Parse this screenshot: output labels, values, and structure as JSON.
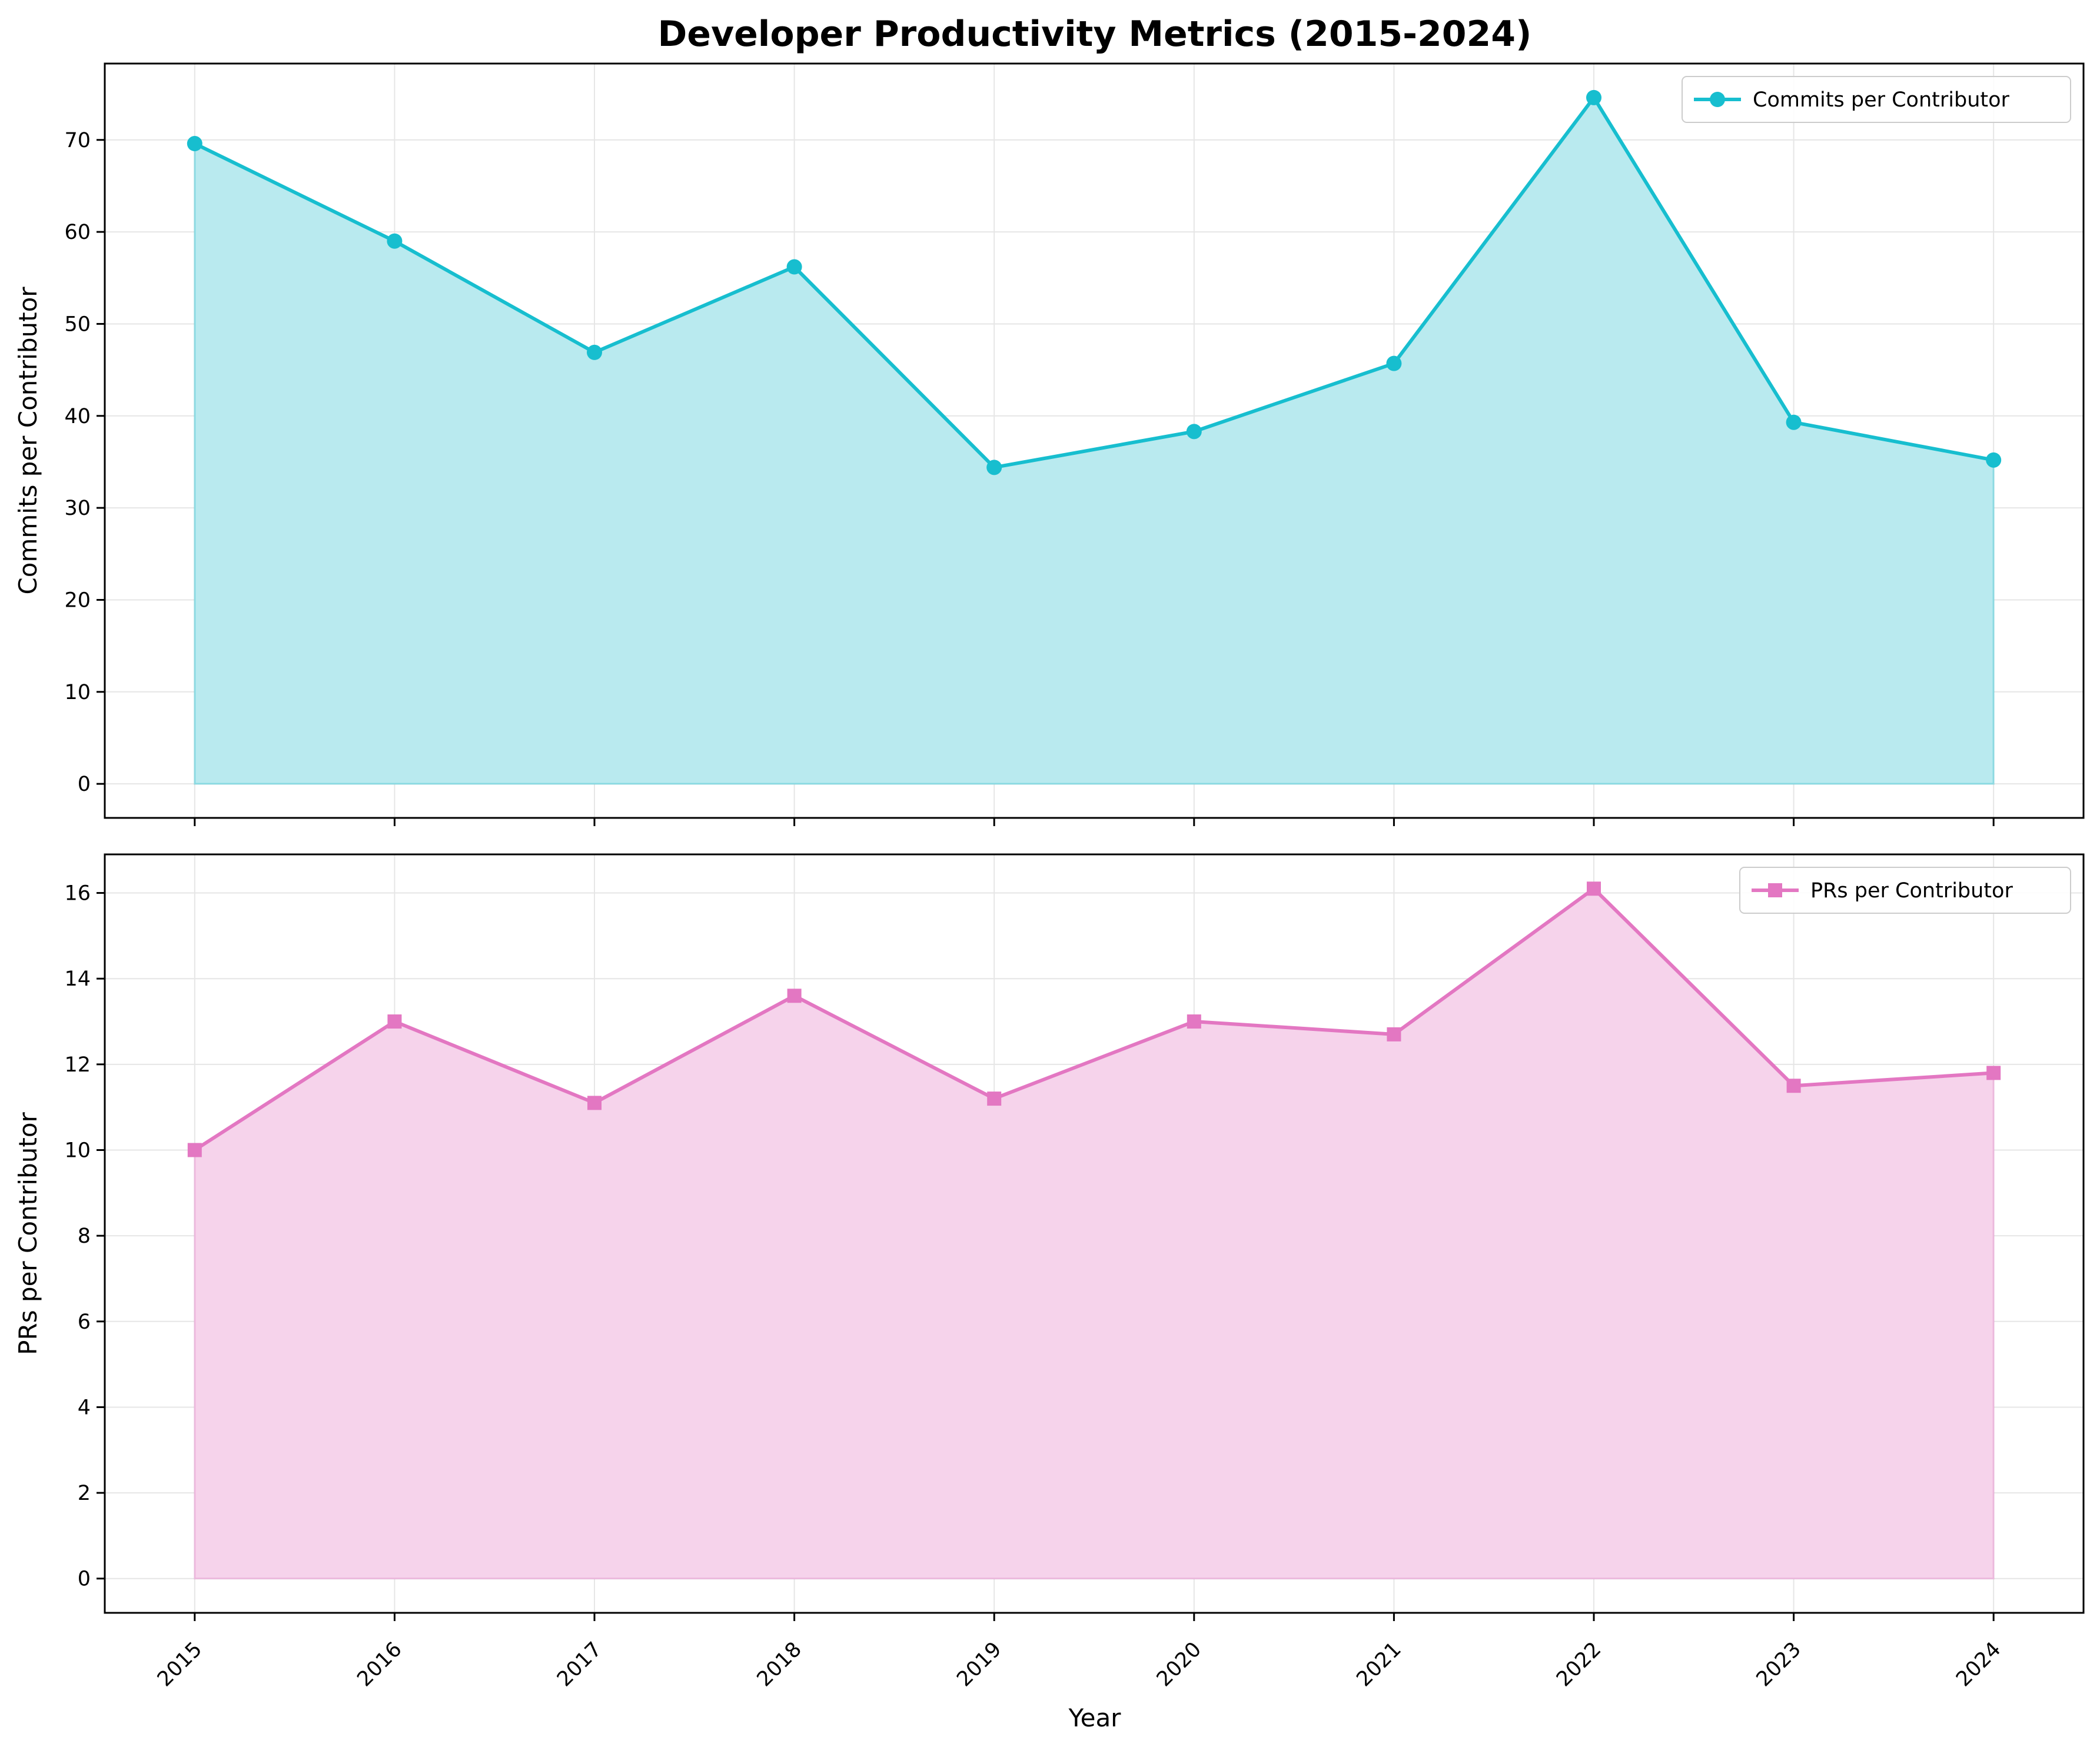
{
  "chart_data": {
    "title": "Developer Productivity Metrics (2015-2024)",
    "xlabel": "Year",
    "x": [
      2015,
      2016,
      2017,
      2018,
      2019,
      2020,
      2021,
      2022,
      2023,
      2024
    ],
    "grid": true,
    "panels": [
      {
        "type": "area",
        "ylabel": "Commits per Contributor",
        "ylim": [
          -3.7,
          78.3
        ],
        "yticks": [
          0,
          10,
          20,
          30,
          40,
          50,
          60,
          70
        ],
        "legend_position": "top-right",
        "series": [
          {
            "name": "Commits per Contributor",
            "marker": "circle",
            "color": "#17becf",
            "fill_color": "#b9eaef",
            "values": [
              69.6,
              59.0,
              46.9,
              56.2,
              34.4,
              38.3,
              45.7,
              74.6,
              39.3,
              35.2
            ]
          }
        ]
      },
      {
        "type": "area",
        "ylabel": "PRs per Contributor",
        "ylim": [
          -0.8,
          16.9
        ],
        "yticks": [
          0,
          2,
          4,
          6,
          8,
          10,
          12,
          14,
          16
        ],
        "legend_position": "top-right",
        "series": [
          {
            "name": "PRs per Contributor",
            "marker": "square",
            "color": "#e377c2",
            "fill_color": "#f6d3eb",
            "values": [
              10.0,
              13.0,
              11.1,
              13.6,
              11.2,
              13.0,
              12.7,
              16.1,
              11.5,
              11.8
            ]
          }
        ]
      }
    ]
  }
}
